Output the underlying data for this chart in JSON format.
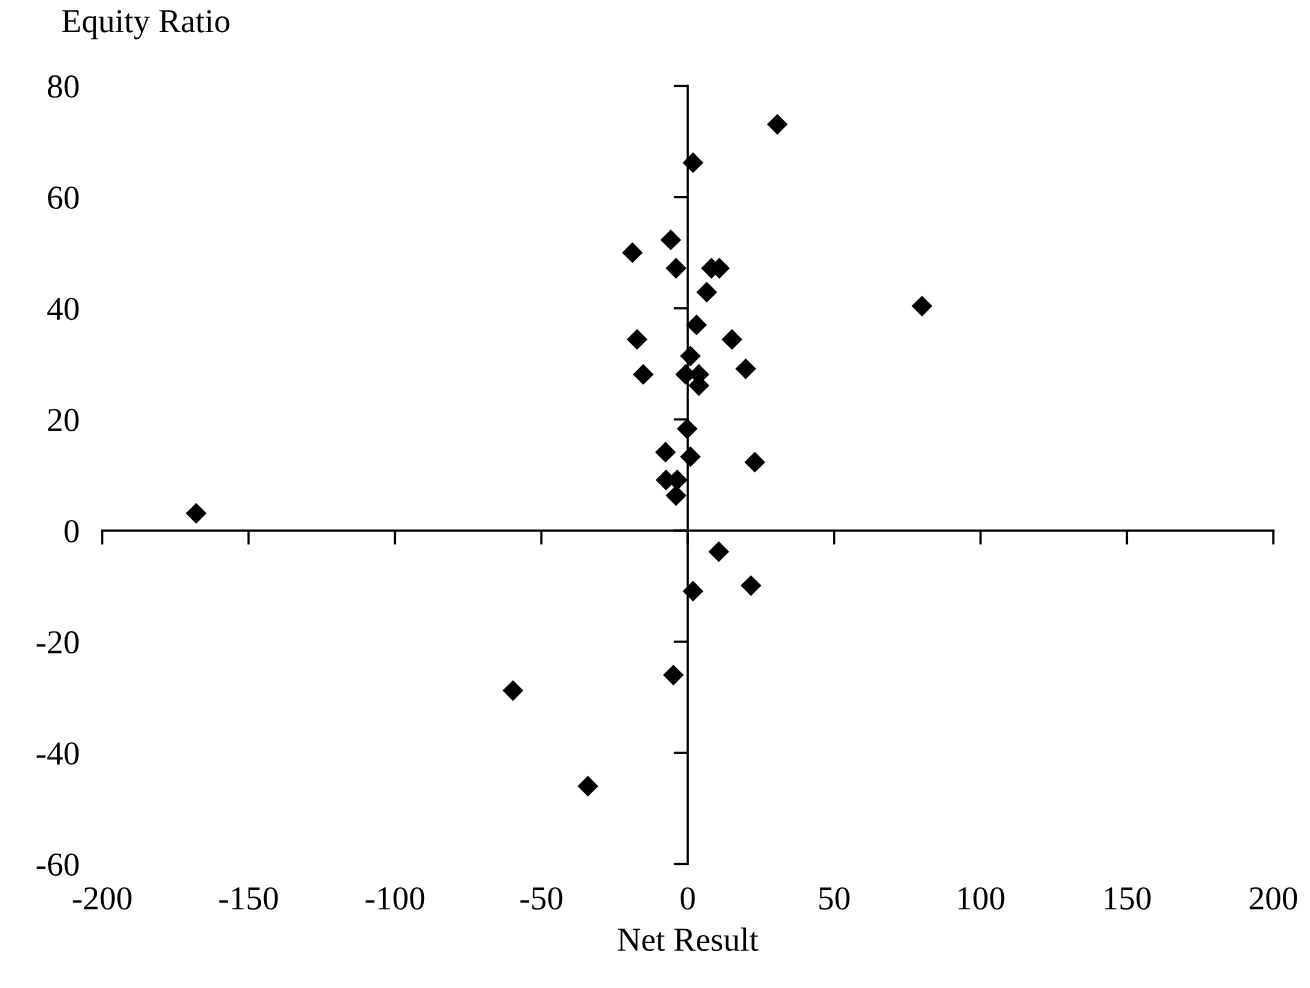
{
  "chart_data": {
    "type": "scatter",
    "xlabel": "Net Result",
    "ylabel": "Equity Ratio",
    "x": [
      30.6,
      1.8,
      -5.8,
      -18.9,
      -4.0,
      8.1,
      10.8,
      6.5,
      3.0,
      -17.3,
      15.1,
      0.9,
      -15.2,
      19.8,
      -0.7,
      3.8,
      3.8,
      -0.2,
      -7.6,
      0.9,
      22.9,
      -7.4,
      -3.6,
      -4.0,
      10.6,
      -167.9,
      1.8,
      21.6,
      -4.9,
      -59.7,
      -34.1,
      80.0
    ],
    "values": [
      73.1,
      66.2,
      52.3,
      50.0,
      47.2,
      47.2,
      47.2,
      42.9,
      37.0,
      34.4,
      34.4,
      31.4,
      28.1,
      29.1,
      28.1,
      28.1,
      26.1,
      18.3,
      14.1,
      13.3,
      12.3,
      9.1,
      9.1,
      6.3,
      -3.8,
      3.1,
      -10.9,
      -9.9,
      -26.0,
      -28.8,
      -46.0,
      40.4
    ],
    "color": "#000000",
    "marker": "diamond",
    "xlim": [
      -200,
      200
    ],
    "xticks": [
      -200,
      -150,
      -100,
      -50,
      0,
      50,
      100,
      150,
      200
    ],
    "ylim": [
      -60,
      80
    ],
    "yticks": [
      -60,
      -40,
      -20,
      0,
      20,
      40,
      60,
      80
    ]
  }
}
